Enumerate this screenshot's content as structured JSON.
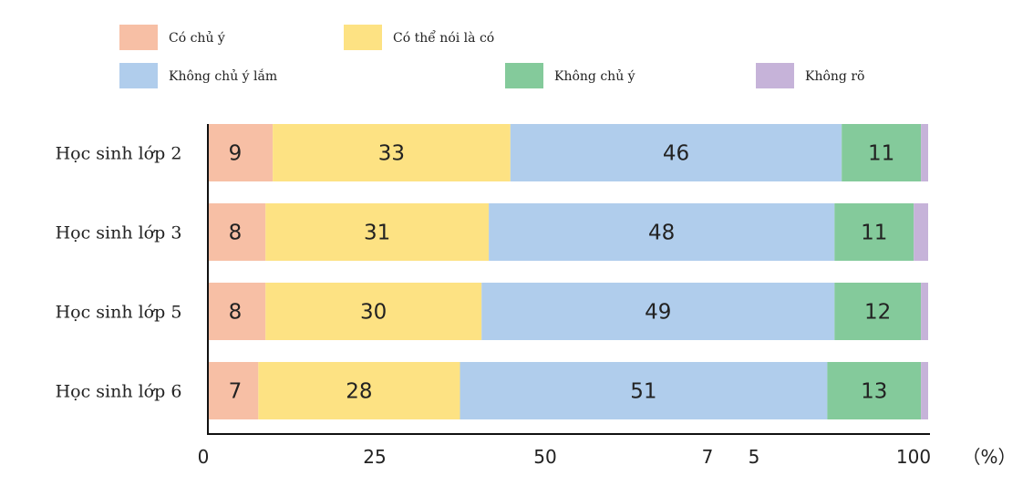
{
  "chart_data": {
    "type": "bar",
    "orientation": "horizontal",
    "stacked": true,
    "categories": [
      "Học sinh lớp 2",
      "Học sinh lớp 3",
      "Học sinh lớp 5",
      "Học sinh lớp 6"
    ],
    "series": [
      {
        "name": "Có chủ ý",
        "color": "#f7bfa5",
        "values": [
          9,
          8,
          8,
          7
        ]
      },
      {
        "name": "Có thể nói là có",
        "color": "#fde283",
        "values": [
          33,
          31,
          30,
          28
        ]
      },
      {
        "name": "Không chủ ý lắm",
        "color": "#b0cdec",
        "values": [
          46,
          48,
          49,
          51
        ]
      },
      {
        "name": "Không chủ ý",
        "color": "#84ca9b",
        "values": [
          11,
          11,
          12,
          13
        ]
      },
      {
        "name": "Không rõ",
        "color": "#c6b3d9",
        "values": [
          1,
          2,
          1,
          1
        ]
      }
    ],
    "value_labels": [
      [
        "9",
        "33",
        "46",
        "11"
      ],
      [
        "8",
        "31",
        "48",
        "11"
      ],
      [
        "8",
        "30",
        "49",
        "12"
      ],
      [
        "7",
        "28",
        "51",
        "13"
      ]
    ],
    "xlim": [
      0,
      100
    ],
    "x_ticks": [
      "0",
      "25",
      "50",
      "7",
      "5",
      "100"
    ],
    "x_unit": "（%）",
    "legend_position": "top"
  }
}
